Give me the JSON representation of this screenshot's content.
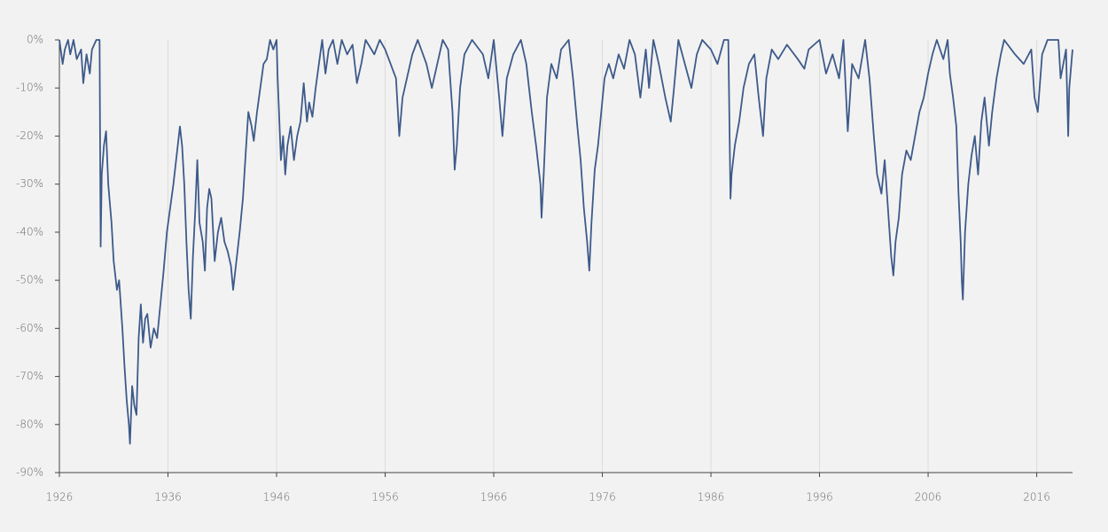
{
  "chart_data": {
    "type": "line",
    "x": [
      1926.0,
      1926.3,
      1926.5,
      1926.8,
      1927.0,
      1927.3,
      1927.6,
      1928.0,
      1928.2,
      1928.5,
      1928.8,
      1929.0,
      1929.4,
      1929.7,
      1929.8,
      1929.9,
      1930.1,
      1930.3,
      1930.5,
      1930.8,
      1931.0,
      1931.3,
      1931.5,
      1931.8,
      1932.0,
      1932.2,
      1932.4,
      1932.5,
      1932.7,
      1932.9,
      1933.1,
      1933.3,
      1933.5,
      1933.7,
      1933.9,
      1934.1,
      1934.4,
      1934.7,
      1935.0,
      1935.3,
      1935.6,
      1935.9,
      1936.2,
      1936.5,
      1936.8,
      1937.1,
      1937.3,
      1937.5,
      1937.7,
      1937.9,
      1938.1,
      1938.3,
      1938.5,
      1938.7,
      1938.9,
      1939.2,
      1939.4,
      1939.6,
      1939.8,
      1940.0,
      1940.3,
      1940.6,
      1940.9,
      1941.2,
      1941.5,
      1941.8,
      1942.0,
      1942.3,
      1942.6,
      1942.9,
      1943.2,
      1943.4,
      1943.7,
      1943.9,
      1944.2,
      1944.5,
      1944.8,
      1945.1,
      1945.4,
      1945.7,
      1946.0,
      1946.1,
      1946.4,
      1946.6,
      1946.8,
      1947.0,
      1947.3,
      1947.6,
      1947.9,
      1948.2,
      1948.5,
      1948.8,
      1949.0,
      1949.3,
      1949.6,
      1949.9,
      1950.2,
      1950.5,
      1950.8,
      1951.2,
      1951.6,
      1952.0,
      1952.5,
      1953.0,
      1953.4,
      1953.8,
      1954.2,
      1955.0,
      1955.5,
      1956.0,
      1956.5,
      1957.0,
      1957.3,
      1957.6,
      1958.0,
      1958.5,
      1959.0,
      1959.8,
      1960.3,
      1960.8,
      1961.3,
      1961.8,
      1962.2,
      1962.4,
      1962.6,
      1962.9,
      1963.3,
      1964.0,
      1965.0,
      1965.5,
      1966.0,
      1966.5,
      1966.8,
      1967.2,
      1967.8,
      1968.5,
      1969.0,
      1969.5,
      1969.9,
      1970.3,
      1970.4,
      1970.6,
      1970.9,
      1971.3,
      1971.8,
      1972.2,
      1972.9,
      1973.3,
      1973.7,
      1974.0,
      1974.3,
      1974.6,
      1974.8,
      1975.0,
      1975.3,
      1975.6,
      1975.9,
      1976.2,
      1976.6,
      1977.0,
      1977.5,
      1978.0,
      1978.5,
      1979.0,
      1979.5,
      1980.0,
      1980.3,
      1980.7,
      1981.2,
      1981.8,
      1982.3,
      1982.6,
      1983.0,
      1983.6,
      1984.2,
      1984.7,
      1985.2,
      1986.0,
      1986.6,
      1987.2,
      1987.6,
      1987.8,
      1987.9,
      1988.2,
      1988.6,
      1989.0,
      1989.5,
      1990.0,
      1990.4,
      1990.8,
      1991.1,
      1991.6,
      1992.2,
      1993.0,
      1994.0,
      1994.6,
      1995.0,
      1996.0,
      1996.6,
      1997.2,
      1997.8,
      1998.2,
      1998.6,
      1999.0,
      1999.6,
      2000.2,
      2000.6,
      2001.0,
      2001.3,
      2001.7,
      2002.0,
      2002.3,
      2002.6,
      2002.8,
      2003.0,
      2003.3,
      2003.6,
      2004.0,
      2004.4,
      2004.8,
      2005.2,
      2005.6,
      2006.0,
      2006.4,
      2006.8,
      2007.4,
      2007.8,
      2008.0,
      2008.3,
      2008.6,
      2008.8,
      2009.0,
      2009.1,
      2009.2,
      2009.4,
      2009.7,
      2010.0,
      2010.3,
      2010.6,
      2010.9,
      2011.2,
      2011.6,
      2011.9,
      2012.3,
      2012.7,
      2013.0,
      2014.0,
      2014.8,
      2015.5,
      2015.8,
      2016.1,
      2016.5,
      2017.0,
      2018.0,
      2018.2,
      2018.7,
      2018.9,
      2019.0,
      2019.3
    ],
    "values": [
      0,
      -5,
      -2,
      0,
      -3,
      0,
      -4,
      -2,
      -9,
      -3,
      -7,
      -2,
      0,
      0,
      -43,
      -28,
      -22,
      -19,
      -30,
      -38,
      -46,
      -52,
      -50,
      -60,
      -68,
      -75,
      -80,
      -84,
      -72,
      -76,
      -78,
      -62,
      -55,
      -63,
      -58,
      -57,
      -64,
      -60,
      -62,
      -55,
      -48,
      -40,
      -35,
      -30,
      -24,
      -18,
      -22,
      -30,
      -42,
      -52,
      -58,
      -45,
      -36,
      -25,
      -38,
      -42,
      -48,
      -35,
      -31,
      -33,
      -46,
      -40,
      -37,
      -42,
      -44,
      -47,
      -52,
      -46,
      -40,
      -33,
      -22,
      -15,
      -18,
      -21,
      -15,
      -10,
      -5,
      -4,
      0,
      -2,
      0,
      -8,
      -25,
      -20,
      -28,
      -22,
      -18,
      -25,
      -20,
      -17,
      -9,
      -17,
      -13,
      -16,
      -10,
      -5,
      0,
      -7,
      -2,
      0,
      -5,
      0,
      -3,
      -1,
      -9,
      -5,
      0,
      -3,
      0,
      -2,
      -5,
      -8,
      -20,
      -12,
      -8,
      -3,
      0,
      -5,
      -10,
      -5,
      0,
      -2,
      -15,
      -27,
      -22,
      -10,
      -3,
      0,
      -3,
      -8,
      0,
      -12,
      -20,
      -8,
      -3,
      0,
      -5,
      -15,
      -22,
      -30,
      -37,
      -28,
      -12,
      -5,
      -8,
      -2,
      0,
      -8,
      -18,
      -25,
      -35,
      -42,
      -48,
      -38,
      -27,
      -22,
      -15,
      -8,
      -5,
      -8,
      -3,
      -6,
      0,
      -3,
      -12,
      -2,
      -10,
      0,
      -5,
      -12,
      -17,
      -10,
      0,
      -5,
      -10,
      -3,
      0,
      -2,
      -5,
      0,
      0,
      -33,
      -28,
      -22,
      -17,
      -10,
      -5,
      -3,
      -12,
      -20,
      -8,
      -2,
      -4,
      -1,
      -4,
      -6,
      -2,
      0,
      -7,
      -3,
      -8,
      0,
      -19,
      -5,
      -8,
      0,
      -8,
      -20,
      -28,
      -32,
      -25,
      -35,
      -45,
      -49,
      -42,
      -37,
      -28,
      -23,
      -25,
      -20,
      -15,
      -12,
      -7,
      -3,
      0,
      -4,
      0,
      -7,
      -12,
      -18,
      -32,
      -42,
      -50,
      -54,
      -40,
      -30,
      -24,
      -20,
      -28,
      -17,
      -12,
      -22,
      -15,
      -8,
      -3,
      0,
      -3,
      -5,
      -2,
      -12,
      -15,
      -3,
      0,
      0,
      -8,
      -2,
      -20,
      -10,
      -2
    ],
    "color": "#3d5a8a",
    "xlim": [
      1926,
      2019.3
    ],
    "xticks": [
      1926,
      1936,
      1946,
      1956,
      1966,
      1976,
      1986,
      1996,
      2006,
      2016
    ],
    "ylim": [
      -90,
      0
    ],
    "yticks": [
      {
        "value": 0,
        "label": "0%"
      },
      {
        "value": -10,
        "label": "-10%"
      },
      {
        "value": -20,
        "label": "-20%"
      },
      {
        "value": -30,
        "label": "-30%"
      },
      {
        "value": -40,
        "label": "-40%"
      },
      {
        "value": -50,
        "label": "-50%"
      },
      {
        "value": -60,
        "label": "-60%"
      },
      {
        "value": -70,
        "label": "-70%"
      },
      {
        "value": -80,
        "label": "-80%"
      },
      {
        "value": -90,
        "label": "-90%"
      }
    ],
    "grid": "x"
  }
}
